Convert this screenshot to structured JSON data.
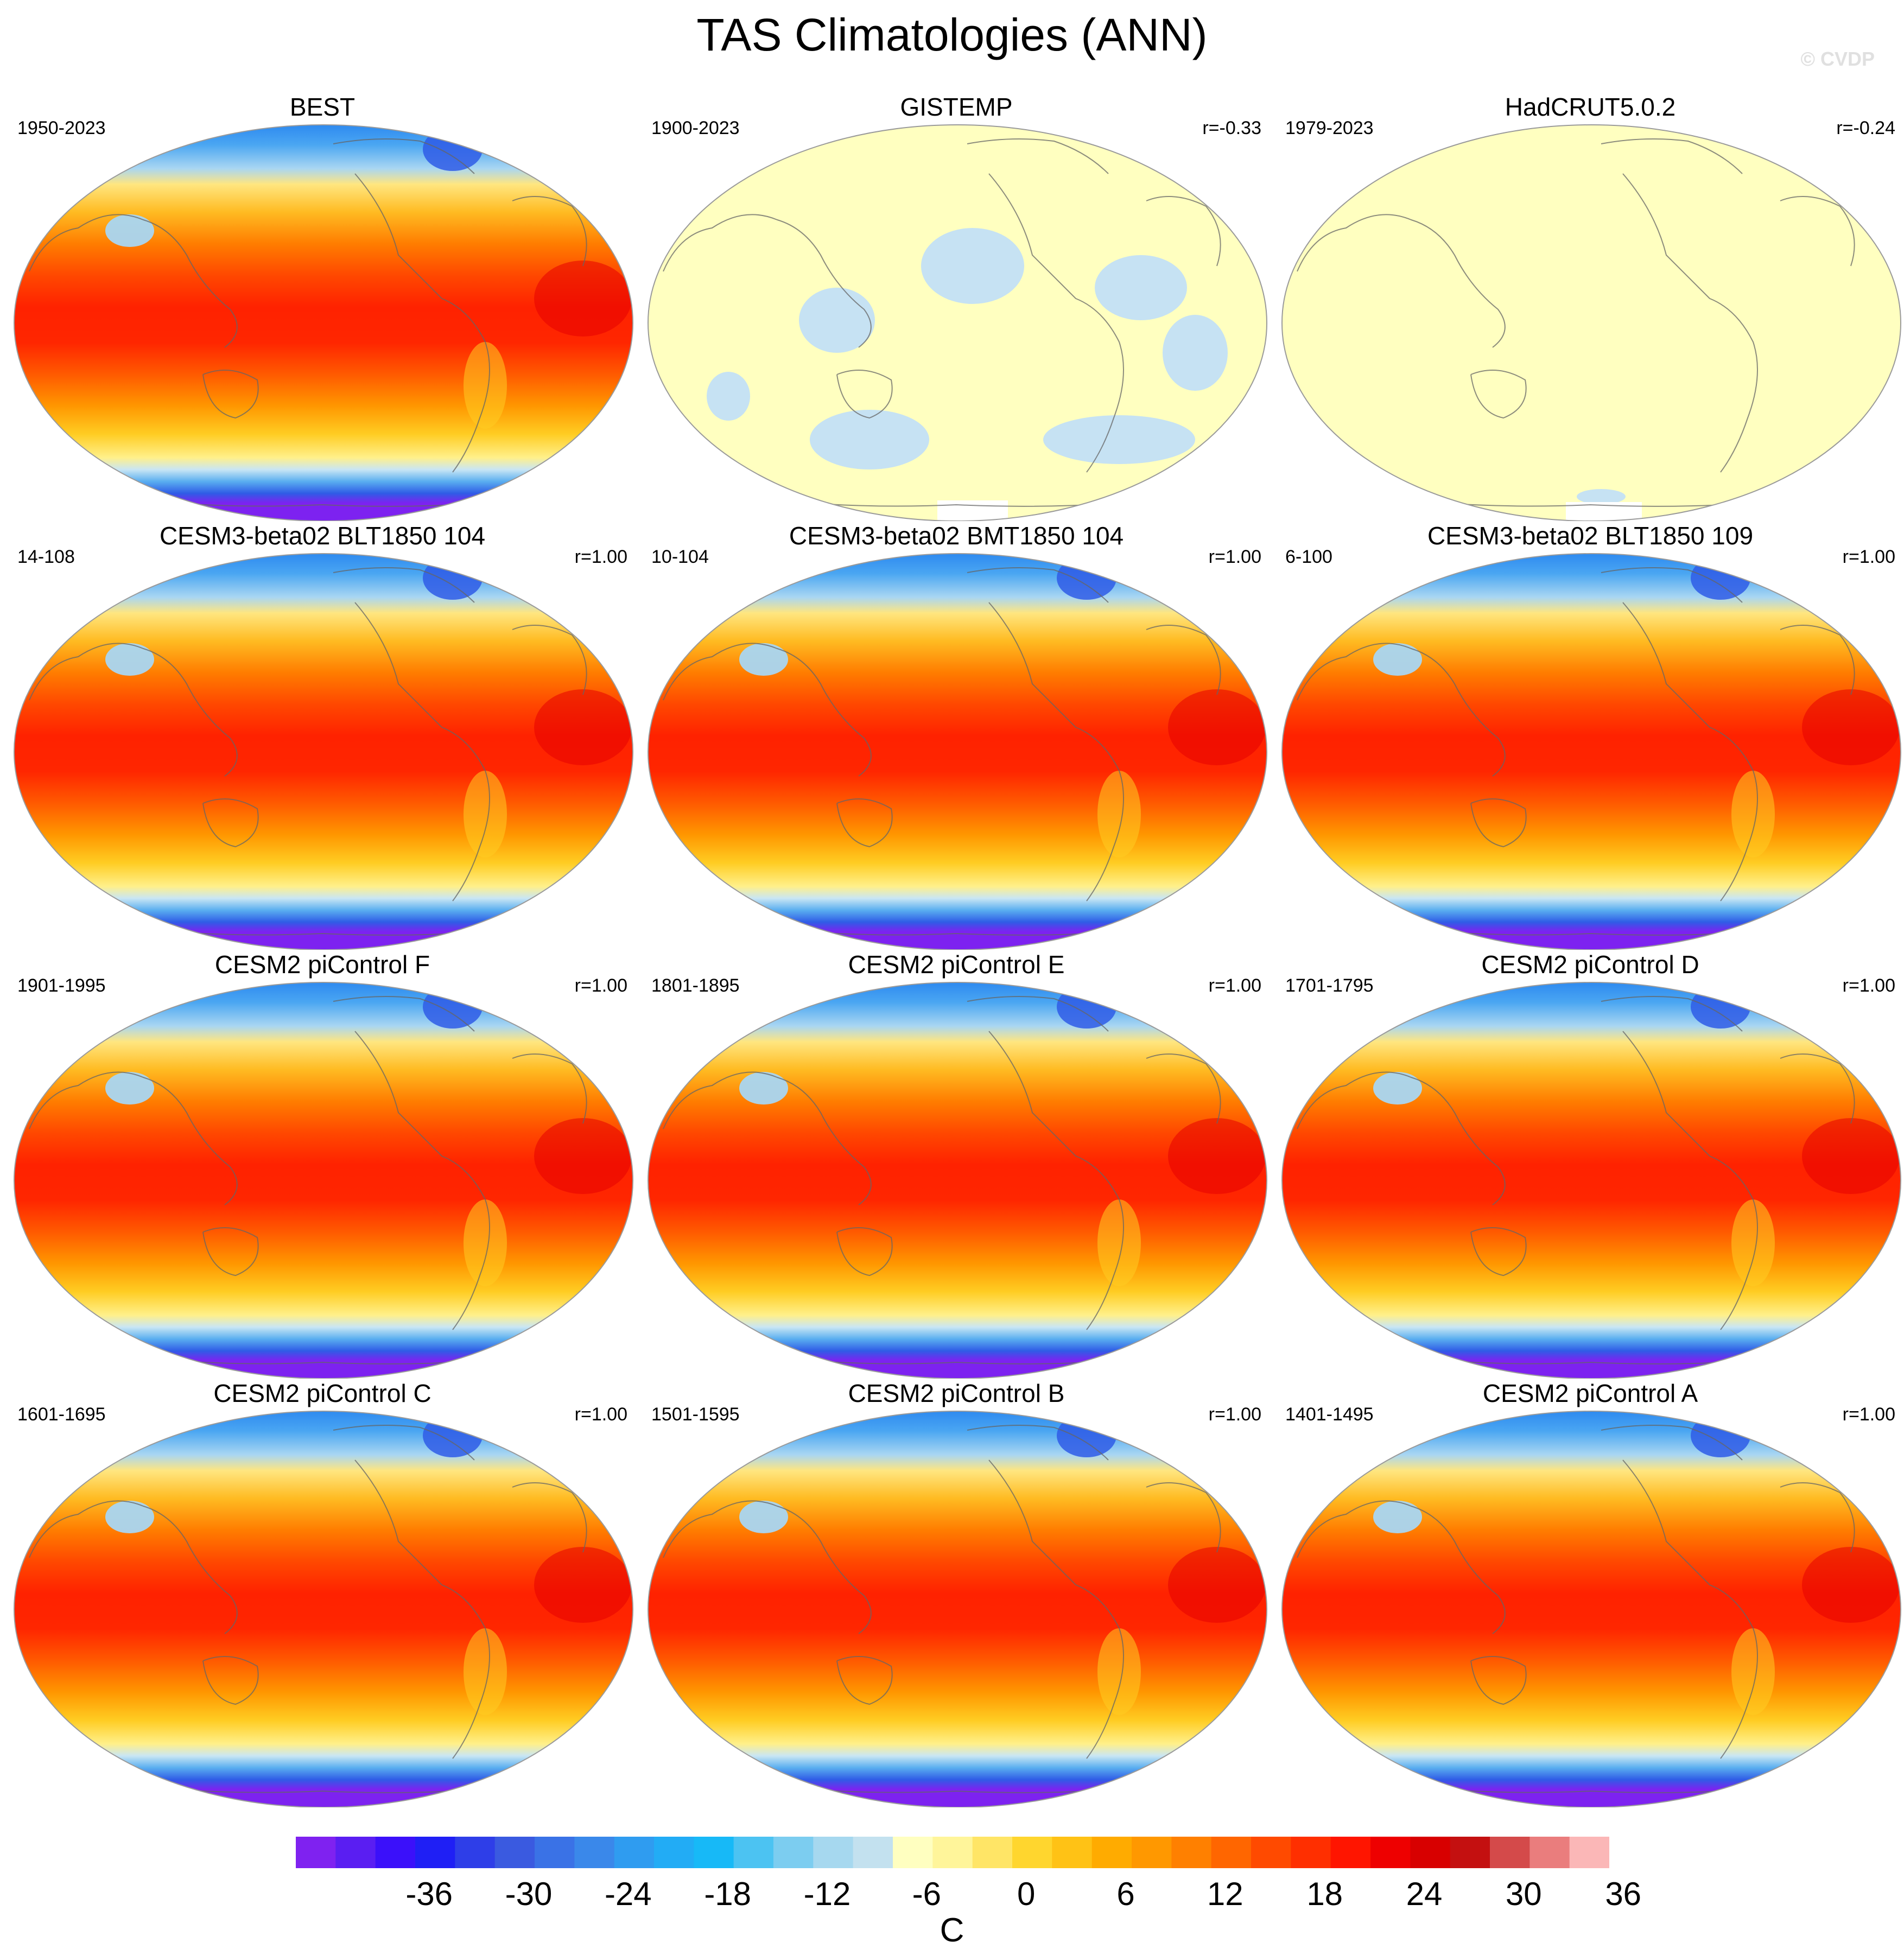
{
  "title": "TAS Climatologies (ANN)",
  "watermark": "© CVDP",
  "panels": [
    {
      "title": "BEST",
      "left": "1950-2023",
      "right": "",
      "fill": "full"
    },
    {
      "title": "GISTEMP",
      "left": "1900-2023",
      "right": "r=-0.33",
      "fill": "anomaly-light"
    },
    {
      "title": "HadCRUT5.0.2",
      "left": "1979-2023",
      "right": "r=-0.24",
      "fill": "anomaly-flat"
    },
    {
      "title": "CESM3-beta02 BLT1850 104",
      "left": "14-108",
      "right": "r=1.00",
      "fill": "full"
    },
    {
      "title": "CESM3-beta02 BMT1850 104",
      "left": "10-104",
      "right": "r=1.00",
      "fill": "full"
    },
    {
      "title": "CESM3-beta02 BLT1850 109",
      "left": "6-100",
      "right": "r=1.00",
      "fill": "full"
    },
    {
      "title": "CESM2 piControl F",
      "left": "1901-1995",
      "right": "r=1.00",
      "fill": "full"
    },
    {
      "title": "CESM2 piControl E",
      "left": "1801-1895",
      "right": "r=1.00",
      "fill": "full"
    },
    {
      "title": "CESM2 piControl D",
      "left": "1701-1795",
      "right": "r=1.00",
      "fill": "full"
    },
    {
      "title": "CESM2 piControl C",
      "left": "1601-1695",
      "right": "r=1.00",
      "fill": "full"
    },
    {
      "title": "CESM2 piControl B",
      "left": "1501-1595",
      "right": "r=1.00",
      "fill": "full"
    },
    {
      "title": "CESM2 piControl A",
      "left": "1401-1495",
      "right": "r=1.00",
      "fill": "full"
    }
  ],
  "colorbar": {
    "units": "C",
    "labels": [
      "-36",
      "-30",
      "-24",
      "-18",
      "-12",
      "-6",
      "0",
      "6",
      "12",
      "18",
      "24",
      "30",
      "36"
    ],
    "colors": [
      "#7f22f0",
      "#5a1ef2",
      "#3b10fa",
      "#1f1ff5",
      "#2e3ee8",
      "#3a5ae0",
      "#3a72e6",
      "#3a88ea",
      "#2f9cf0",
      "#22acf5",
      "#17b9f7",
      "#4cc3f2",
      "#7ccdf0",
      "#a6d8ef",
      "#c3e1ef",
      "#ffffc0",
      "#fff59a",
      "#ffe566",
      "#ffd62e",
      "#ffc215",
      "#ffab00",
      "#ff9800",
      "#ff8000",
      "#ff6600",
      "#ff4a00",
      "#ff2f00",
      "#ff1500",
      "#ee0000",
      "#d80000",
      "#c41010",
      "#d44a4a",
      "#ea7d7d",
      "#fbb7b7"
    ]
  }
}
